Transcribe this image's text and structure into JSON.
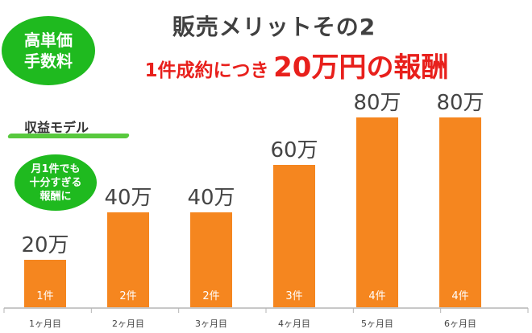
{
  "header": {
    "badge_lines": [
      "高単価",
      "手数料"
    ],
    "title": "販売メリットその2",
    "subtitle_prefix": "1件成約につき",
    "subtitle_emphasis": "20万円の報酬"
  },
  "model_label": "収益モデル",
  "side_badge_lines": [
    "月1件でも",
    "十分すぎる",
    "報酬に"
  ],
  "colors": {
    "bar": "#f5861f",
    "badge": "#1fba1f",
    "title": "#404040",
    "emphasis": "#e8201c",
    "underline": "#58c93e"
  },
  "chart_data": {
    "type": "bar",
    "categories": [
      "1ヶ月目",
      "2ヶ月目",
      "3ヶ月目",
      "4ヶ月目",
      "5ヶ月目",
      "6ヶ月目"
    ],
    "values": [
      20,
      40,
      40,
      60,
      80,
      80
    ],
    "value_labels": [
      "20万",
      "40万",
      "40万",
      "60万",
      "80万",
      "80万"
    ],
    "bar_labels": [
      "1件",
      "2件",
      "2件",
      "3件",
      "4件",
      "4件"
    ],
    "unit": "万",
    "ylim": [
      0,
      100
    ],
    "grid": false,
    "legend": "none"
  }
}
